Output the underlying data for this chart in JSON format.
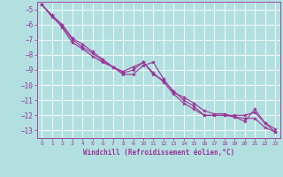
{
  "xlabel": "Windchill (Refroidissement éolien,°C)",
  "background_color": "#b2e0e0",
  "grid_color": "#ffffff",
  "line_color": "#993399",
  "xlim": [
    -0.5,
    23.5
  ],
  "ylim": [
    -13.5,
    -4.5
  ],
  "xticks": [
    0,
    1,
    2,
    3,
    4,
    5,
    6,
    7,
    8,
    9,
    10,
    11,
    12,
    13,
    14,
    15,
    16,
    17,
    18,
    19,
    20,
    21,
    22,
    23
  ],
  "yticks": [
    -13,
    -12,
    -11,
    -10,
    -9,
    -8,
    -7,
    -6,
    -5
  ],
  "series1_x": [
    0,
    1,
    2,
    3,
    4,
    5,
    6,
    7,
    8,
    9,
    10,
    11,
    12,
    13,
    14,
    15,
    16,
    17,
    18,
    19,
    20,
    21,
    22,
    23
  ],
  "series1_y": [
    -4.7,
    -5.4,
    -6.2,
    -7.2,
    -7.6,
    -8.1,
    -8.5,
    -8.8,
    -9.3,
    -9.3,
    -8.7,
    -8.5,
    -9.6,
    -10.5,
    -10.8,
    -11.2,
    -11.7,
    -11.9,
    -11.9,
    -12.1,
    -12.4,
    -11.6,
    -12.5,
    -12.9
  ],
  "series2_x": [
    0,
    1,
    2,
    3,
    4,
    5,
    6,
    7,
    8,
    9,
    10,
    11,
    12,
    13,
    14,
    15,
    16,
    17,
    18,
    19,
    20,
    21,
    22,
    23
  ],
  "series2_y": [
    -4.7,
    -5.5,
    -6.1,
    -7.0,
    -7.5,
    -7.9,
    -8.4,
    -8.8,
    -9.2,
    -9.0,
    -8.5,
    -9.2,
    -9.8,
    -10.6,
    -11.2,
    -11.6,
    -12.0,
    -12.0,
    -12.0,
    -12.1,
    -12.2,
    -12.2,
    -12.8,
    -13.1
  ],
  "series3_x": [
    0,
    1,
    2,
    3,
    4,
    5,
    6,
    7,
    8,
    9,
    10,
    11,
    12,
    13,
    14,
    15,
    16,
    17,
    18,
    19,
    20,
    21,
    22,
    23
  ],
  "series3_y": [
    -4.7,
    -5.4,
    -6.0,
    -6.9,
    -7.3,
    -7.8,
    -8.3,
    -8.8,
    -9.1,
    -8.8,
    -8.5,
    -9.3,
    -9.7,
    -10.4,
    -11.0,
    -11.4,
    -12.0,
    -12.0,
    -12.0,
    -12.0,
    -12.0,
    -11.8,
    -12.5,
    -13.1
  ]
}
